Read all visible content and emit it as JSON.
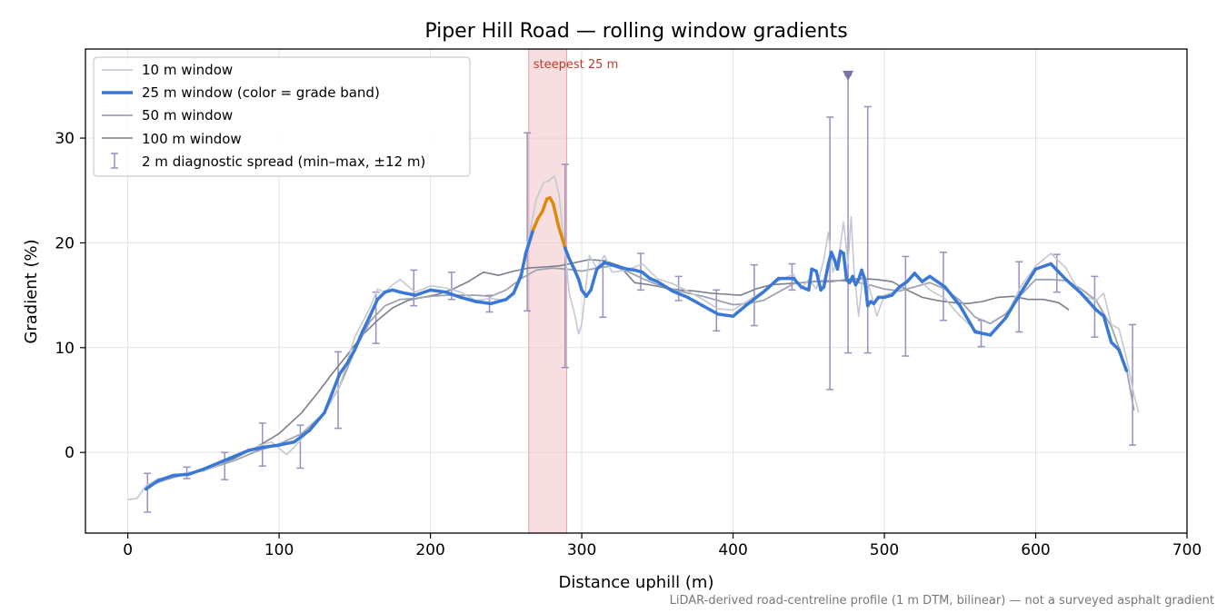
{
  "chart_data": {
    "type": "line",
    "title": "Piper Hill Road — rolling window gradients",
    "xlabel": "Distance uphill (m)",
    "ylabel": "Gradient (%)",
    "xlim": [
      -28,
      700
    ],
    "ylim": [
      -7.7,
      38.5
    ],
    "xticks": [
      0,
      100,
      200,
      300,
      400,
      500,
      600,
      700
    ],
    "yticks": [
      0,
      10,
      20,
      30
    ],
    "grid": true,
    "legend_position": "top-left",
    "footnote": "LiDAR-derived road-centreline profile (1 m DTM, bilinear) — not a surveyed asphalt gradient",
    "steepest_band": {
      "x_start": 265,
      "x_end": 290,
      "label": "steepest 25 m"
    },
    "marker": {
      "x": 476,
      "y": 36
    },
    "colors": {
      "w10": "#c4c8d2",
      "w25": "#3a78d6",
      "w25_steep": "#dd8a0a",
      "w50": "#9ea3b3",
      "w100": "#7a7f8c",
      "errorbar": "#9a90bd",
      "band": "#f1c3c7",
      "band_label": "#c0392b",
      "marker": "#7c6fa6"
    },
    "series": [
      {
        "name": "10 m window",
        "x": [
          0,
          6,
          12,
          20,
          30,
          40,
          50,
          60,
          70,
          80,
          90,
          95,
          100,
          105,
          110,
          115,
          120,
          130,
          140,
          150,
          160,
          165,
          170,
          175,
          180,
          190,
          200,
          210,
          220,
          230,
          240,
          250,
          255,
          260,
          265,
          270,
          275,
          278,
          282,
          285,
          288,
          292,
          295,
          298,
          300,
          305,
          310,
          315,
          320,
          330,
          340,
          350,
          360,
          370,
          380,
          390,
          400,
          410,
          420,
          430,
          440,
          445,
          450,
          455,
          460,
          463,
          466,
          470,
          473,
          476,
          478,
          480,
          483,
          486,
          490,
          495,
          500,
          510,
          520,
          530,
          540,
          550,
          560,
          570,
          580,
          590,
          600,
          610,
          620,
          630,
          640,
          645,
          650,
          655,
          660,
          665,
          668
        ],
        "values": [
          -4.5,
          -4.4,
          -3.2,
          -2.5,
          -2.3,
          -1.9,
          -1.8,
          -1.2,
          -0.4,
          0.2,
          0.8,
          1.0,
          0.4,
          -0.2,
          0.5,
          1.3,
          2.2,
          3.8,
          6.3,
          11.0,
          13.8,
          15.6,
          15.3,
          16.0,
          16.5,
          15.3,
          15.9,
          15.7,
          15.3,
          14.5,
          14.7,
          14.5,
          15.4,
          17.3,
          20.5,
          24.2,
          25.8,
          25.9,
          26.4,
          24.5,
          20.3,
          15.0,
          13.4,
          11.3,
          12.3,
          18.8,
          17.6,
          18.8,
          17.2,
          17.4,
          18.0,
          16.6,
          16.1,
          15.4,
          14.6,
          13.7,
          13.6,
          14.5,
          15.4,
          16.4,
          17.0,
          15.6,
          16.5,
          15.6,
          18.4,
          21.0,
          17.2,
          18.8,
          22.0,
          18.0,
          22.5,
          17.3,
          13.0,
          17.2,
          15.8,
          13.0,
          15.0,
          15.5,
          16.9,
          15.5,
          14.7,
          13.0,
          11.7,
          11.1,
          12.9,
          15.8,
          17.8,
          19.0,
          17.6,
          15.0,
          14.5,
          15.2,
          12.2,
          11.8,
          9.0,
          5.5,
          3.8
        ]
      },
      {
        "name": "25 m window (color = grade band)",
        "x": [
          12,
          20,
          30,
          40,
          50,
          60,
          70,
          80,
          90,
          100,
          110,
          120,
          130,
          140,
          145,
          150,
          155,
          160,
          165,
          170,
          175,
          180,
          190,
          200,
          210,
          220,
          230,
          240,
          250,
          255,
          260,
          263,
          265,
          268,
          271,
          274,
          277,
          279,
          281,
          283,
          285,
          287,
          289,
          292,
          295,
          298,
          300,
          303,
          306,
          310,
          315,
          320,
          325,
          330,
          335,
          340,
          345,
          350,
          360,
          370,
          380,
          390,
          400,
          410,
          420,
          430,
          440,
          445,
          450,
          452,
          455,
          458,
          460,
          463,
          465,
          467,
          469,
          471,
          473,
          475,
          477,
          479,
          481,
          483,
          485,
          487,
          489,
          491,
          493,
          496,
          500,
          505,
          510,
          515,
          520,
          525,
          530,
          540,
          550,
          560,
          570,
          580,
          590,
          600,
          610,
          620,
          630,
          640,
          645,
          650,
          655,
          660
        ],
        "values": [
          -3.5,
          -2.7,
          -2.2,
          -2.1,
          -1.6,
          -1.0,
          -0.4,
          0.2,
          0.5,
          0.7,
          1.0,
          2.1,
          3.8,
          7.5,
          8.5,
          9.8,
          11.5,
          13.0,
          14.6,
          15.3,
          15.5,
          15.3,
          15.0,
          15.5,
          15.3,
          14.8,
          14.4,
          14.2,
          14.6,
          15.2,
          16.9,
          19.0,
          19.9,
          21.3,
          22.3,
          23.0,
          24.2,
          24.3,
          23.8,
          22.6,
          21.4,
          20.5,
          19.5,
          18.4,
          17.5,
          16.5,
          15.5,
          14.9,
          15.5,
          17.5,
          18.1,
          17.9,
          17.7,
          17.5,
          17.4,
          17.2,
          16.6,
          16.3,
          15.4,
          14.8,
          14.0,
          13.2,
          13.0,
          14.2,
          15.3,
          16.6,
          16.6,
          15.8,
          15.5,
          17.5,
          17.3,
          15.5,
          15.8,
          18.0,
          19.1,
          18.4,
          17.5,
          19.2,
          19.0,
          16.5,
          16.2,
          16.8,
          16.0,
          16.5,
          17.4,
          16.5,
          14.0,
          14.4,
          14.2,
          14.8,
          14.8,
          15.0,
          15.8,
          16.3,
          17.1,
          16.3,
          16.8,
          15.8,
          14.0,
          11.5,
          11.2,
          12.8,
          15.2,
          17.5,
          18.0,
          16.5,
          15.2,
          13.6,
          13.0,
          10.5,
          9.8,
          7.8
        ]
      },
      {
        "name": "50 m window",
        "x": [
          12,
          25,
          40,
          55,
          70,
          85,
          100,
          115,
          130,
          140,
          150,
          160,
          170,
          180,
          190,
          200,
          210,
          220,
          230,
          240,
          250,
          260,
          270,
          280,
          290,
          300,
          310,
          320,
          330,
          340,
          350,
          360,
          370,
          380,
          390,
          400,
          410,
          420,
          430,
          440,
          450,
          460,
          470,
          480,
          490,
          500,
          510,
          520,
          530,
          540,
          550,
          560,
          570,
          580,
          590,
          600,
          610,
          620,
          630,
          640,
          650,
          660,
          665
        ],
        "values": [
          -3.3,
          -2.6,
          -2.0,
          -1.5,
          -0.8,
          0.1,
          0.8,
          1.8,
          3.8,
          6.3,
          9.7,
          12.5,
          14.0,
          14.6,
          14.7,
          14.9,
          15.0,
          15.0,
          15.0,
          14.9,
          15.5,
          16.6,
          17.4,
          17.6,
          17.5,
          17.3,
          17.6,
          17.8,
          17.3,
          16.6,
          16.0,
          15.6,
          15.2,
          14.9,
          14.5,
          14.1,
          14.2,
          14.5,
          15.3,
          16.1,
          16.3,
          16.4,
          16.4,
          16.3,
          16.0,
          15.6,
          15.4,
          15.8,
          16.2,
          15.6,
          14.5,
          12.9,
          12.3,
          13.2,
          15.0,
          16.5,
          16.5,
          16.4,
          15.6,
          14.5,
          12.0,
          8.0,
          4.0
        ]
      },
      {
        "name": "100 m window",
        "x": [
          12,
          25,
          40,
          55,
          70,
          85,
          100,
          115,
          125,
          135,
          145,
          155,
          165,
          175,
          185,
          195,
          205,
          215,
          225,
          235,
          245,
          255,
          265,
          275,
          285,
          295,
          305,
          315,
          325,
          335,
          345,
          355,
          365,
          375,
          385,
          395,
          405,
          415,
          425,
          435,
          445,
          455,
          465,
          475,
          485,
          495,
          505,
          515,
          525,
          535,
          545,
          555,
          565,
          575,
          585,
          595,
          605,
          615,
          622
        ],
        "values": [
          -3.2,
          -2.6,
          -2.0,
          -1.4,
          -0.6,
          0.5,
          1.8,
          3.8,
          5.6,
          7.5,
          9.3,
          11.2,
          12.6,
          13.8,
          14.5,
          14.8,
          15.1,
          15.6,
          16.3,
          17.2,
          16.9,
          17.3,
          17.6,
          17.7,
          17.8,
          18.1,
          18.4,
          18.3,
          17.8,
          16.2,
          16.0,
          15.7,
          15.5,
          15.4,
          15.2,
          15.1,
          15.0,
          15.6,
          16.0,
          16.1,
          16.2,
          16.3,
          16.3,
          16.5,
          16.6,
          16.5,
          16.3,
          15.5,
          14.8,
          14.5,
          14.3,
          14.2,
          14.4,
          14.8,
          14.9,
          14.6,
          14.6,
          14.3,
          13.6
        ]
      }
    ],
    "errorbars": {
      "name": "2 m diagnostic spread (min–max, ±12 m)",
      "points": [
        {
          "x": 13,
          "low": -5.7,
          "high": -2.0
        },
        {
          "x": 39,
          "low": -2.5,
          "high": -1.4
        },
        {
          "x": 64,
          "low": -2.6,
          "high": 0.0
        },
        {
          "x": 89,
          "low": -1.3,
          "high": 2.8
        },
        {
          "x": 114,
          "low": -1.5,
          "high": 2.6
        },
        {
          "x": 139,
          "low": 2.3,
          "high": 9.6
        },
        {
          "x": 164,
          "low": 10.4,
          "high": 15.3
        },
        {
          "x": 189,
          "low": 14.0,
          "high": 17.4
        },
        {
          "x": 214,
          "low": 14.6,
          "high": 17.2
        },
        {
          "x": 239,
          "low": 13.4,
          "high": 15.0
        },
        {
          "x": 264,
          "low": 13.5,
          "high": 30.5
        },
        {
          "x": 289,
          "low": 8.1,
          "high": 27.5
        },
        {
          "x": 314,
          "low": 12.9,
          "high": 18.3
        },
        {
          "x": 339,
          "low": 15.5,
          "high": 19.0
        },
        {
          "x": 364,
          "low": 14.5,
          "high": 16.8
        },
        {
          "x": 389,
          "low": 11.6,
          "high": 15.5
        },
        {
          "x": 414,
          "low": 12.1,
          "high": 17.9
        },
        {
          "x": 439,
          "low": 15.5,
          "high": 18.0
        },
        {
          "x": 464,
          "low": 6.0,
          "high": 32.0
        },
        {
          "x": 476,
          "low": 9.5,
          "high": 36.0
        },
        {
          "x": 489,
          "low": 9.5,
          "high": 33.0
        },
        {
          "x": 514,
          "low": 9.2,
          "high": 18.7
        },
        {
          "x": 539,
          "low": 12.6,
          "high": 19.1
        },
        {
          "x": 564,
          "low": 10.1,
          "high": 12.6
        },
        {
          "x": 589,
          "low": 11.5,
          "high": 18.2
        },
        {
          "x": 614,
          "low": 15.3,
          "high": 18.9
        },
        {
          "x": 639,
          "low": 11.0,
          "high": 16.8
        },
        {
          "x": 664,
          "low": 0.7,
          "high": 12.2
        }
      ]
    }
  }
}
